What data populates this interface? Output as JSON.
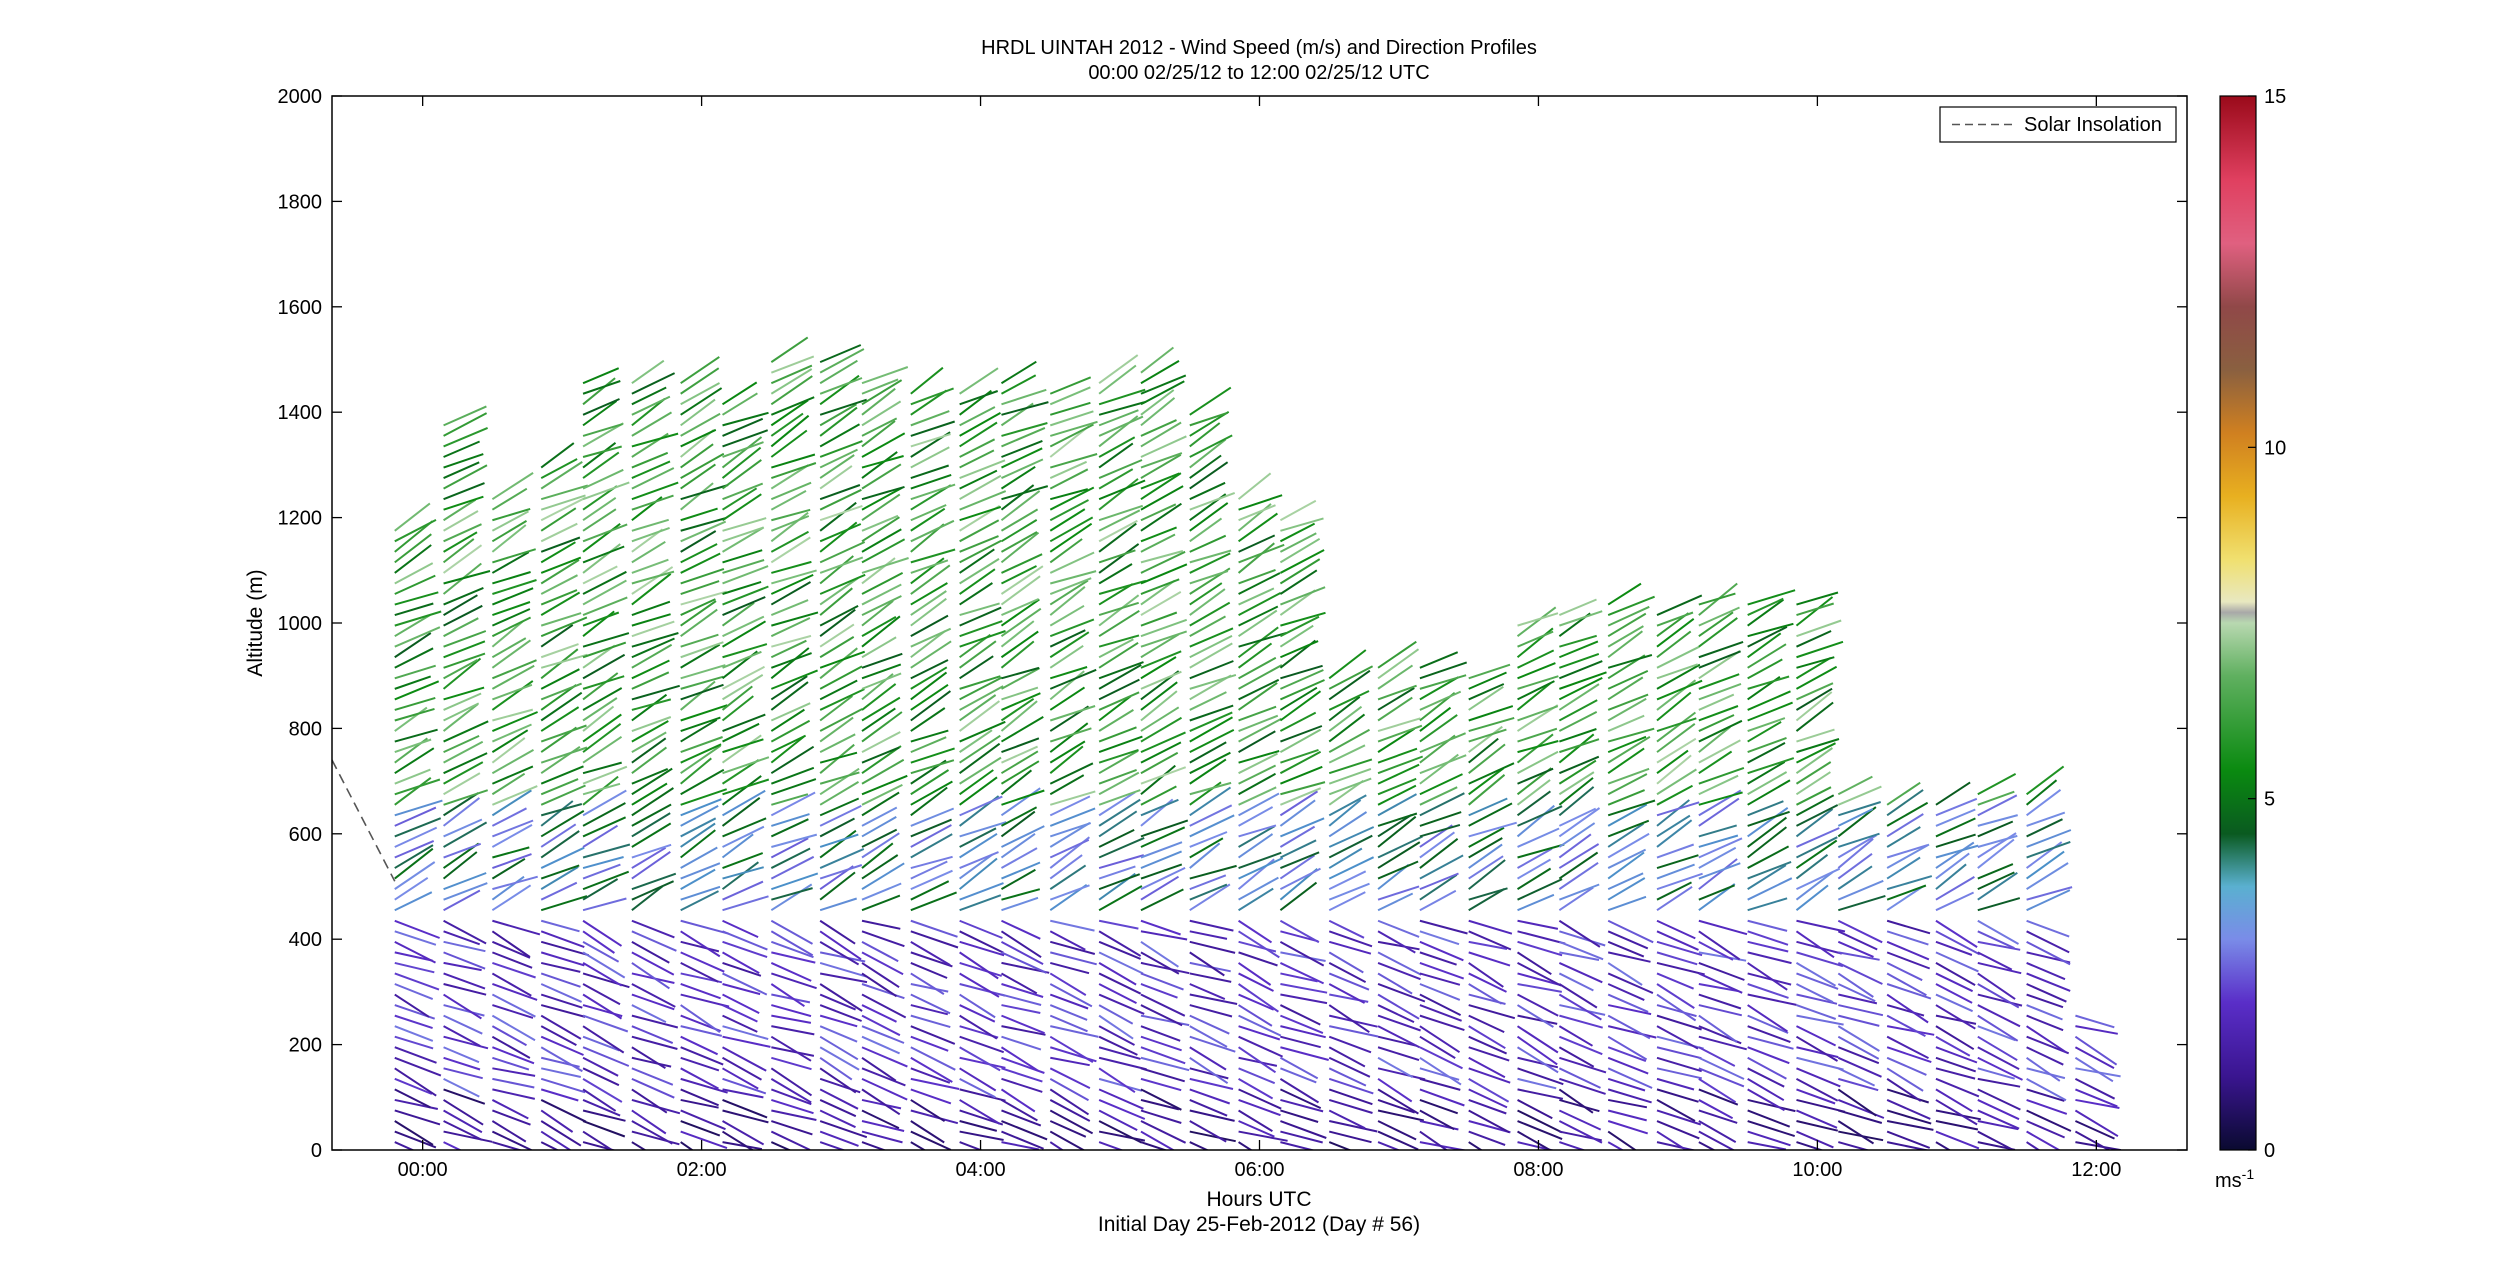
{
  "chart_data": {
    "type": "line",
    "title": "HRDL UINTAH 2012 - Wind Speed (m/s) and Direction Profiles",
    "subtitle": "00:00 02/25/12 to 12:00 02/25/12  UTC",
    "xlabel": "Hours UTC",
    "xlabel2": "Initial Day 25-Feb-2012 (Day # 56)",
    "ylabel": "Altitude (m)",
    "x_ticks": [
      "00:00",
      "02:00",
      "04:00",
      "06:00",
      "08:00",
      "10:00",
      "12:00"
    ],
    "y_ticks": [
      "0",
      "200",
      "400",
      "600",
      "800",
      "1000",
      "1200",
      "1400",
      "1600",
      "1800",
      "2000"
    ],
    "xlim_hours": [
      -0.65,
      12.65
    ],
    "ylim": [
      0,
      2000
    ],
    "colorbar": {
      "ticks": [
        "0",
        "5",
        "10",
        "15"
      ],
      "unit_label": "ms",
      "unit_exponent": "-1",
      "range": [
        0,
        15
      ]
    },
    "legend": {
      "position": "top-right",
      "entries": [
        "Solar Insolation"
      ]
    },
    "solar_insolation": {
      "x": [
        -0.65,
        -0.2
      ],
      "y": [
        740,
        510
      ]
    },
    "profiles": [
      {
        "t": -0.2,
        "top": 1180
      },
      {
        "t": 0.15,
        "top": 1385
      },
      {
        "t": 0.5,
        "top": 1250
      },
      {
        "t": 0.85,
        "top": 1300
      },
      {
        "t": 1.15,
        "top": 1460
      },
      {
        "t": 1.5,
        "top": 1470
      },
      {
        "t": 1.85,
        "top": 1465
      },
      {
        "t": 2.15,
        "top": 1420
      },
      {
        "t": 2.5,
        "top": 1510
      },
      {
        "t": 2.85,
        "top": 1510
      },
      {
        "t": 3.15,
        "top": 1460
      },
      {
        "t": 3.5,
        "top": 1450
      },
      {
        "t": 3.85,
        "top": 1450
      },
      {
        "t": 4.15,
        "top": 1460
      },
      {
        "t": 4.5,
        "top": 1450
      },
      {
        "t": 4.85,
        "top": 1460
      },
      {
        "t": 5.15,
        "top": 1480
      },
      {
        "t": 5.5,
        "top": 1410
      },
      {
        "t": 5.85,
        "top": 1250
      },
      {
        "t": 6.15,
        "top": 1200
      },
      {
        "t": 6.5,
        "top": 900
      },
      {
        "t": 6.85,
        "top": 930
      },
      {
        "t": 7.15,
        "top": 920
      },
      {
        "t": 7.5,
        "top": 900
      },
      {
        "t": 7.85,
        "top": 1000
      },
      {
        "t": 8.15,
        "top": 1020
      },
      {
        "t": 8.5,
        "top": 1040
      },
      {
        "t": 8.85,
        "top": 1030
      },
      {
        "t": 9.15,
        "top": 1040
      },
      {
        "t": 9.5,
        "top": 1040
      },
      {
        "t": 9.85,
        "top": 1045
      },
      {
        "t": 10.15,
        "top": 680
      },
      {
        "t": 10.5,
        "top": 660
      },
      {
        "t": 10.85,
        "top": 660
      },
      {
        "t": 11.15,
        "top": 680
      },
      {
        "t": 11.5,
        "top": 680
      },
      {
        "t": 11.85,
        "top": 270
      }
    ]
  }
}
